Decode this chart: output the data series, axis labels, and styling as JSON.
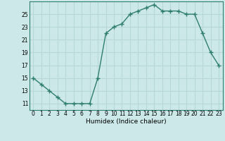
{
  "x": [
    0,
    1,
    2,
    3,
    4,
    5,
    6,
    7,
    8,
    9,
    10,
    11,
    12,
    13,
    14,
    15,
    16,
    17,
    18,
    19,
    20,
    21,
    22,
    23
  ],
  "y": [
    15,
    14,
    13,
    12,
    11,
    11,
    11,
    11,
    15,
    22,
    23,
    23.5,
    25,
    25.5,
    26,
    26.5,
    25.5,
    25.5,
    25.5,
    25,
    25,
    22,
    19,
    17
  ],
  "xlabel": "Humidex (Indice chaleur)",
  "ylim": [
    10,
    27
  ],
  "xlim": [
    -0.5,
    23.5
  ],
  "yticks": [
    11,
    13,
    15,
    17,
    19,
    21,
    23,
    25
  ],
  "xticks": [
    0,
    1,
    2,
    3,
    4,
    5,
    6,
    7,
    8,
    9,
    10,
    11,
    12,
    13,
    14,
    15,
    16,
    17,
    18,
    19,
    20,
    21,
    22,
    23
  ],
  "line_color": "#2e7d6e",
  "bg_color": "#cce8e8",
  "grid_color": "#b8d8d8",
  "marker": "+",
  "linewidth": 1.0,
  "markersize": 4,
  "xlabel_fontsize": 6.5,
  "tick_fontsize": 5.5
}
